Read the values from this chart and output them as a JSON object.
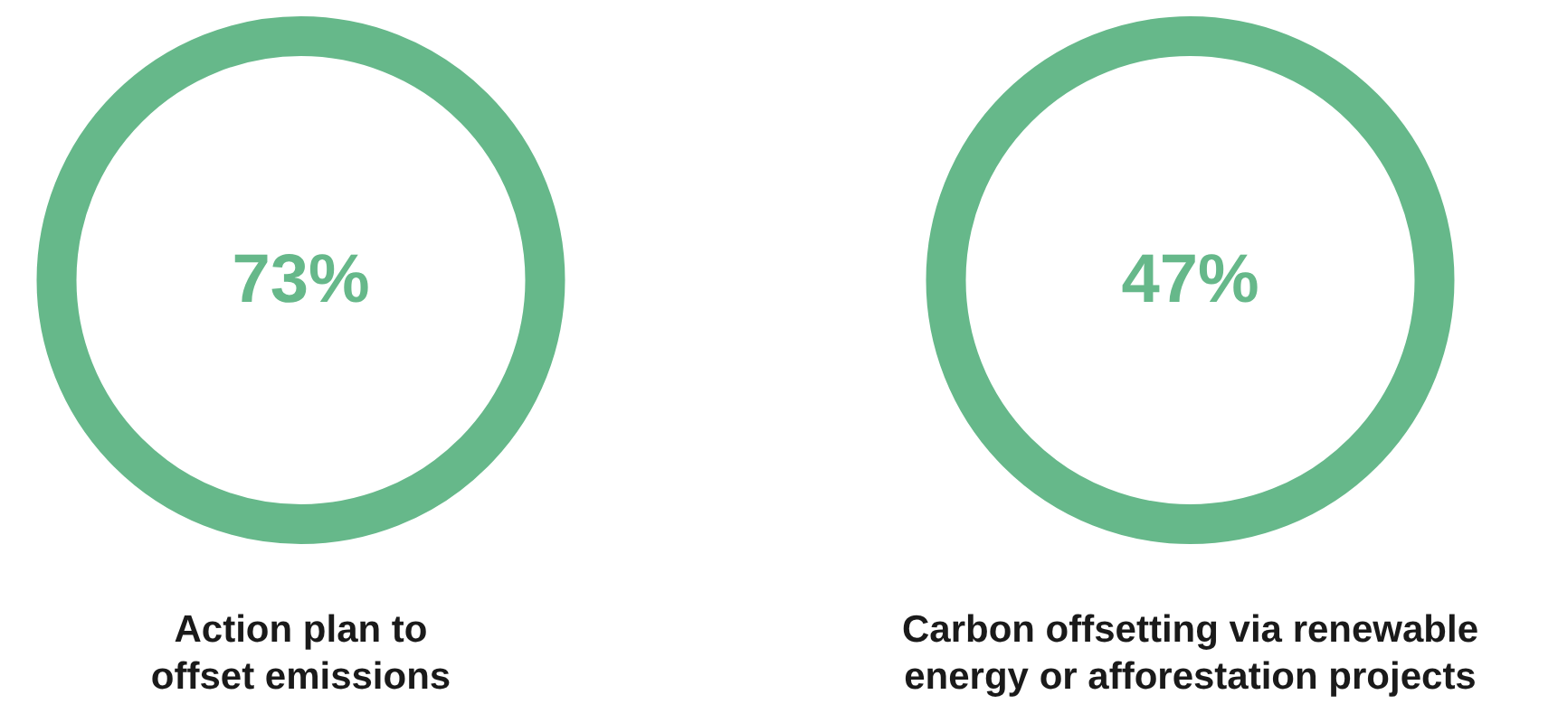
{
  "chart_data": {
    "type": "other",
    "categories": [
      "Action plan to offset emissions",
      "Carbon offsetting via renewable energy or afforestation projects"
    ],
    "values": [
      73,
      47
    ],
    "value_labels": [
      "73%",
      "47%"
    ],
    "color": "#66b88a"
  }
}
